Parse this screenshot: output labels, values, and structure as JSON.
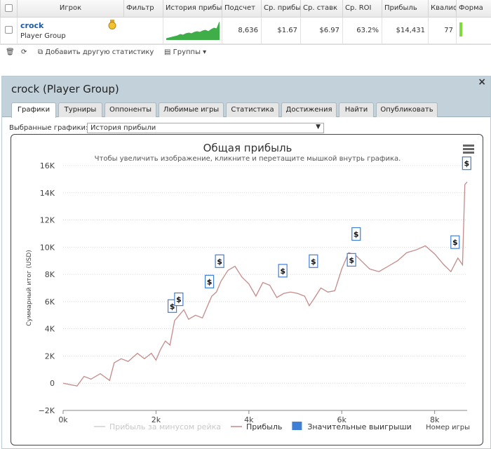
{
  "table": {
    "headers": [
      "Игрок",
      "Фильтр",
      "История прибы",
      "Подсчет",
      "Ср. прибы",
      "Ср. ставк",
      "Ср. ROI",
      "Прибыль",
      "Квалиф",
      "Форма"
    ],
    "row": {
      "player_name": "crock",
      "player_group": "Player Group",
      "count": "8,636",
      "avg_profit": "$1.67",
      "avg_stake": "$6.97",
      "avg_roi": "63.2%",
      "profit": "$14,431",
      "qualif": "77"
    }
  },
  "toolbar": {
    "add_stat": "Добавить другую статистику",
    "groups": "Группы"
  },
  "panel": {
    "title": "crock (Player Group)",
    "tabs": [
      "Графики",
      "Турниры",
      "Оппоненты",
      "Любимые игры",
      "Статистика",
      "Достижения",
      "Найти",
      "Опубликовать"
    ],
    "active_tab": 0,
    "selected_label": "Выбранные графики:",
    "selected_value": "История прибыли"
  },
  "colors": {
    "line": "#c58a8a",
    "legend_blue": "#3f7fd6",
    "spark": "#3fae49",
    "panel_header": "#c2d1da"
  },
  "chart_data": {
    "type": "line",
    "title": "Общая прибыль",
    "subtitle": "Чтобы увеличить изображение, кликните и перетащите мышкой внутрь графика.",
    "ylabel": "Суммарный итог (USD)",
    "xlabel": "Номер игры",
    "ylim": [
      -2000,
      16000
    ],
    "xlim": [
      0,
      8700
    ],
    "y_ticks": [
      "−2K",
      "0",
      "2K",
      "4K",
      "6K",
      "8K",
      "10K",
      "12K",
      "14K",
      "16K"
    ],
    "x_ticks": [
      "0k",
      "2k",
      "4k",
      "6k",
      "8k"
    ],
    "grid": true,
    "series": [
      {
        "name": "Прибыль",
        "x": [
          0,
          150,
          300,
          450,
          600,
          800,
          1000,
          1100,
          1250,
          1400,
          1600,
          1750,
          1900,
          2000,
          2100,
          2200,
          2300,
          2400,
          2500,
          2600,
          2700,
          2850,
          3000,
          3100,
          3200,
          3300,
          3400,
          3550,
          3700,
          3850,
          4000,
          4150,
          4300,
          4450,
          4600,
          4750,
          4900,
          5050,
          5200,
          5300,
          5400,
          5550,
          5700,
          5850,
          6000,
          6150,
          6300,
          6450,
          6600,
          6800,
          7000,
          7200,
          7400,
          7600,
          7800,
          8000,
          8200,
          8350,
          8500,
          8600,
          8650,
          8700
        ],
        "y": [
          0,
          -100,
          -200,
          500,
          300,
          700,
          200,
          1500,
          1800,
          1600,
          2200,
          1800,
          2200,
          1700,
          2500,
          3100,
          2800,
          4600,
          5000,
          5400,
          4700,
          5000,
          4800,
          5600,
          6400,
          6700,
          7500,
          8300,
          8600,
          7800,
          7300,
          6400,
          7400,
          7200,
          6300,
          6600,
          6700,
          6600,
          6400,
          5700,
          6200,
          7000,
          6700,
          6800,
          8400,
          9600,
          9400,
          8900,
          8400,
          8200,
          8600,
          9000,
          9600,
          9800,
          10100,
          9500,
          8700,
          8200,
          9200,
          8700,
          14600,
          14800
        ]
      }
    ],
    "markers": [
      {
        "x": 2350,
        "y": 5000,
        "label": "$"
      },
      {
        "x": 2490,
        "y": 5500,
        "label": "$"
      },
      {
        "x": 3150,
        "y": 6800,
        "label": "$"
      },
      {
        "x": 3370,
        "y": 8300,
        "label": "$"
      },
      {
        "x": 4730,
        "y": 7600,
        "label": "$"
      },
      {
        "x": 5390,
        "y": 8300,
        "label": "$"
      },
      {
        "x": 6210,
        "y": 8400,
        "label": "$"
      },
      {
        "x": 6310,
        "y": 10300,
        "label": "$"
      },
      {
        "x": 8440,
        "y": 9700,
        "label": "$"
      },
      {
        "x": 8690,
        "y": 15500,
        "label": "$"
      }
    ],
    "legend": [
      {
        "label": "Прибыль за минусом рейка",
        "color": "#d0d0d0",
        "kind": "line",
        "disabled": true
      },
      {
        "label": "Прибыль",
        "color": "#c58a8a",
        "kind": "line"
      },
      {
        "label": "Значительные выигрыши",
        "color": "#3f7fd6",
        "kind": "box"
      }
    ]
  }
}
